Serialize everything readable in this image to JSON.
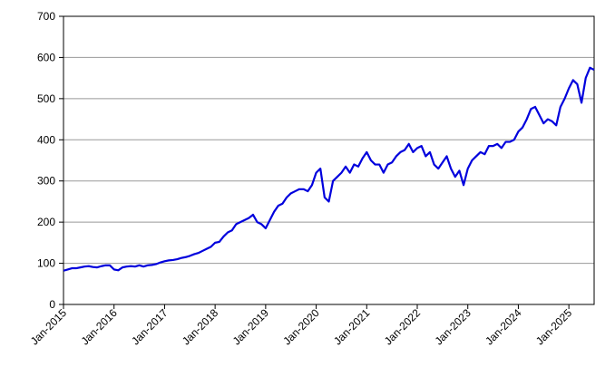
{
  "chart_data": {
    "type": "line",
    "x": [
      "2015-01",
      "2015-02",
      "2015-03",
      "2015-04",
      "2015-05",
      "2015-06",
      "2015-07",
      "2015-08",
      "2015-09",
      "2015-10",
      "2015-11",
      "2015-12",
      "2016-01",
      "2016-02",
      "2016-03",
      "2016-04",
      "2016-05",
      "2016-06",
      "2016-07",
      "2016-08",
      "2016-09",
      "2016-10",
      "2016-11",
      "2016-12",
      "2017-01",
      "2017-02",
      "2017-03",
      "2017-04",
      "2017-05",
      "2017-06",
      "2017-07",
      "2017-08",
      "2017-09",
      "2017-10",
      "2017-11",
      "2017-12",
      "2018-01",
      "2018-02",
      "2018-03",
      "2018-04",
      "2018-05",
      "2018-06",
      "2018-07",
      "2018-08",
      "2018-09",
      "2018-10",
      "2018-11",
      "2018-12",
      "2019-01",
      "2019-02",
      "2019-03",
      "2019-04",
      "2019-05",
      "2019-06",
      "2019-07",
      "2019-08",
      "2019-09",
      "2019-10",
      "2019-11",
      "2019-12",
      "2020-01",
      "2020-02",
      "2020-03",
      "2020-04",
      "2020-05",
      "2020-06",
      "2020-07",
      "2020-08",
      "2020-09",
      "2020-10",
      "2020-11",
      "2020-12",
      "2021-01",
      "2021-02",
      "2021-03",
      "2021-04",
      "2021-05",
      "2021-06",
      "2021-07",
      "2021-08",
      "2021-09",
      "2021-10",
      "2021-11",
      "2021-12",
      "2022-01",
      "2022-02",
      "2022-03",
      "2022-04",
      "2022-05",
      "2022-06",
      "2022-07",
      "2022-08",
      "2022-09",
      "2022-10",
      "2022-11",
      "2022-12",
      "2023-01",
      "2023-02",
      "2023-03",
      "2023-04",
      "2023-05",
      "2023-06",
      "2023-07",
      "2023-08",
      "2023-09",
      "2023-10",
      "2023-11",
      "2023-12",
      "2024-01",
      "2024-02",
      "2024-03",
      "2024-04",
      "2024-05",
      "2024-06",
      "2024-07",
      "2024-08",
      "2024-09",
      "2024-10",
      "2024-11",
      "2024-12",
      "2025-01",
      "2025-02",
      "2025-03",
      "2025-04",
      "2025-05",
      "2025-06",
      "2025-07"
    ],
    "series": [
      {
        "color": "#0000dd",
        "values": [
          82,
          85,
          88,
          88,
          90,
          92,
          93,
          91,
          90,
          93,
          95,
          95,
          85,
          83,
          90,
          92,
          93,
          92,
          95,
          92,
          95,
          96,
          98,
          102,
          105,
          107,
          108,
          110,
          113,
          115,
          118,
          122,
          125,
          130,
          135,
          140,
          150,
          152,
          165,
          175,
          180,
          195,
          200,
          205,
          210,
          218,
          200,
          195,
          185,
          205,
          225,
          240,
          245,
          260,
          270,
          275,
          280,
          280,
          275,
          290,
          320,
          330,
          260,
          250,
          300,
          310,
          320,
          335,
          320,
          340,
          335,
          355,
          370,
          350,
          340,
          340,
          320,
          340,
          345,
          360,
          370,
          375,
          390,
          370,
          380,
          385,
          360,
          370,
          340,
          330,
          345,
          360,
          330,
          310,
          325,
          290,
          330,
          350,
          360,
          370,
          365,
          385,
          385,
          390,
          380,
          395,
          395,
          400,
          420,
          430,
          450,
          475,
          480,
          460,
          440,
          450,
          445,
          435,
          480,
          500,
          525,
          545,
          535,
          490,
          550,
          575,
          570
        ]
      }
    ],
    "xlim": [
      "2015-01",
      "2025-07"
    ],
    "xticks": [
      {
        "value": "2015-01",
        "label": "Jan-2015"
      },
      {
        "value": "2016-01",
        "label": "Jan-2016"
      },
      {
        "value": "2017-01",
        "label": "Jan-2017"
      },
      {
        "value": "2018-01",
        "label": "Jan-2018"
      },
      {
        "value": "2019-01",
        "label": "Jan-2019"
      },
      {
        "value": "2020-01",
        "label": "Jan-2020"
      },
      {
        "value": "2021-01",
        "label": "Jan-2021"
      },
      {
        "value": "2022-01",
        "label": "Jan-2022"
      },
      {
        "value": "2023-01",
        "label": "Jan-2023"
      },
      {
        "value": "2024-01",
        "label": "Jan-2024"
      },
      {
        "value": "2025-01",
        "label": "Jan-2025"
      }
    ],
    "ylim": [
      0,
      700
    ],
    "yticks": [
      0,
      100,
      200,
      300,
      400,
      500,
      600,
      700
    ],
    "grid": true
  }
}
